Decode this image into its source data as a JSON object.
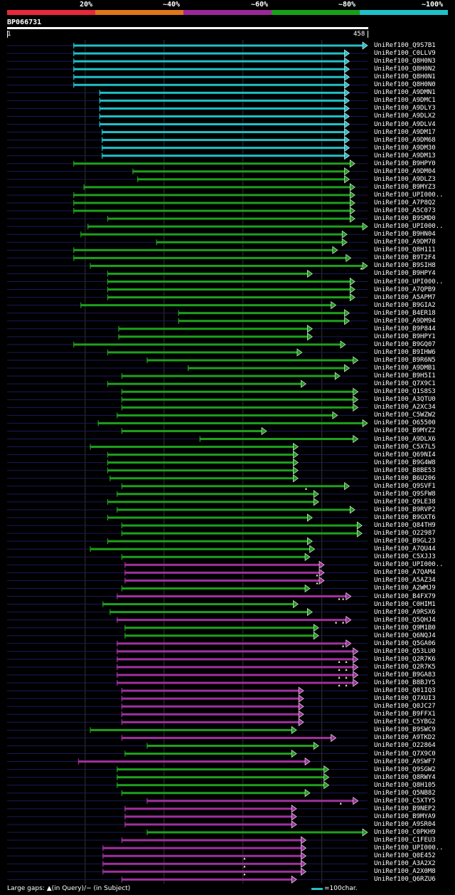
{
  "legend": {
    "labels": [
      "20%",
      "~40%",
      "~60%",
      "~80%",
      "~100%"
    ],
    "colors": [
      "#e8283c",
      "#e07818",
      "#9a2898",
      "#18a018",
      "#20c0c8"
    ]
  },
  "query": {
    "id": "BP066731",
    "start": "1",
    "end": "458",
    "length": 458
  },
  "colors": {
    "cyan": "#20c0c8",
    "green": "#1ea01e",
    "magenta": "#a030a0",
    "track": "#1a1a5a",
    "grid": "#333333"
  },
  "footer": {
    "gaps_text": "Large gaps: ▲(in Query)/− (in Subject)",
    "scale_text": "=100char."
  },
  "hits": [
    {
      "name": "UniRef100_Q9S7B1",
      "s": 85,
      "e": 458,
      "c": "cyan",
      "m": []
    },
    {
      "name": "UniRef100_C0LLV9",
      "s": 85,
      "e": 435,
      "c": "cyan",
      "m": []
    },
    {
      "name": "UniRef100_Q8H0N3",
      "s": 85,
      "e": 435,
      "c": "cyan",
      "m": []
    },
    {
      "name": "UniRef100_Q8H0N2",
      "s": 85,
      "e": 435,
      "c": "cyan",
      "m": []
    },
    {
      "name": "UniRef100_Q8H0N1",
      "s": 85,
      "e": 435,
      "c": "cyan",
      "m": []
    },
    {
      "name": "UniRef100_Q8H0N0",
      "s": 85,
      "e": 435,
      "c": "cyan",
      "m": []
    },
    {
      "name": "UniRef100_A9DMN1",
      "s": 118,
      "e": 435,
      "c": "cyan",
      "m": []
    },
    {
      "name": "UniRef100_A9DMC1",
      "s": 118,
      "e": 435,
      "c": "cyan",
      "m": []
    },
    {
      "name": "UniRef100_A9DLY3",
      "s": 118,
      "e": 435,
      "c": "cyan",
      "m": []
    },
    {
      "name": "UniRef100_A9DLX2",
      "s": 118,
      "e": 435,
      "c": "cyan",
      "m": []
    },
    {
      "name": "UniRef100_A9DLV4",
      "s": 118,
      "e": 435,
      "c": "cyan",
      "m": []
    },
    {
      "name": "UniRef100_A9DM17",
      "s": 121,
      "e": 435,
      "c": "cyan",
      "m": []
    },
    {
      "name": "UniRef100_A9DM68",
      "s": 121,
      "e": 435,
      "c": "cyan",
      "m": []
    },
    {
      "name": "UniRef100_A9DM30",
      "s": 121,
      "e": 435,
      "c": "cyan",
      "m": []
    },
    {
      "name": "UniRef100_A9DM13",
      "s": 121,
      "e": 435,
      "c": "cyan",
      "m": []
    },
    {
      "name": "UniRef100_B9HPY0",
      "s": 85,
      "e": 442,
      "c": "green",
      "m": []
    },
    {
      "name": "UniRef100_A9DM04",
      "s": 160,
      "e": 435,
      "c": "green",
      "m": []
    },
    {
      "name": "UniRef100_A9DLZ3",
      "s": 166,
      "e": 435,
      "c": "green",
      "m": []
    },
    {
      "name": "UniRef100_B9MYZ3",
      "s": 98,
      "e": 442,
      "c": "green",
      "m": []
    },
    {
      "name": "UniRef100_UPI000..",
      "s": 85,
      "e": 442,
      "c": "green",
      "m": []
    },
    {
      "name": "UniRef100_A7P8Q2",
      "s": 85,
      "e": 442,
      "c": "green",
      "m": []
    },
    {
      "name": "UniRef100_A5C073",
      "s": 85,
      "e": 442,
      "c": "green",
      "m": []
    },
    {
      "name": "UniRef100_B9SMD0",
      "s": 128,
      "e": 442,
      "c": "green",
      "m": []
    },
    {
      "name": "UniRef100_UPI000..",
      "s": 103,
      "e": 458,
      "c": "green",
      "m": []
    },
    {
      "name": "UniRef100_B9HN04",
      "s": 94,
      "e": 432,
      "c": "green",
      "m": []
    },
    {
      "name": "UniRef100_A9DM78",
      "s": 190,
      "e": 432,
      "c": "green",
      "m": []
    },
    {
      "name": "UniRef100_Q8H111",
      "s": 85,
      "e": 420,
      "c": "green",
      "m": []
    },
    {
      "name": "UniRef100_B9T2F4",
      "s": 85,
      "e": 437,
      "c": "green",
      "m": []
    },
    {
      "name": "UniRef100_B9SIH8",
      "s": 106,
      "e": 458,
      "c": "green",
      "m": [
        450
      ]
    },
    {
      "name": "UniRef100_B9HPY4",
      "s": 128,
      "e": 388,
      "c": "green",
      "m": []
    },
    {
      "name": "UniRef100_UPI000..",
      "s": 128,
      "e": 442,
      "c": "green",
      "m": []
    },
    {
      "name": "UniRef100_A7QPB9",
      "s": 128,
      "e": 442,
      "c": "green",
      "m": []
    },
    {
      "name": "UniRef100_A5APM7",
      "s": 128,
      "e": 442,
      "c": "green",
      "m": []
    },
    {
      "name": "UniRef100_B9GIA2",
      "s": 94,
      "e": 418,
      "c": "green",
      "m": []
    },
    {
      "name": "UniRef100_B4ER18",
      "s": 218,
      "e": 435,
      "c": "green",
      "m": []
    },
    {
      "name": "UniRef100_A9DM94",
      "s": 218,
      "e": 435,
      "c": "green",
      "m": []
    },
    {
      "name": "UniRef100_B9P844",
      "s": 142,
      "e": 388,
      "c": "green",
      "m": []
    },
    {
      "name": "UniRef100_B9HPY1",
      "s": 142,
      "e": 388,
      "c": "green",
      "m": []
    },
    {
      "name": "UniRef100_B9GQ07",
      "s": 85,
      "e": 430,
      "c": "green",
      "m": []
    },
    {
      "name": "UniRef100_B9IHW6",
      "s": 128,
      "e": 375,
      "c": "green",
      "m": []
    },
    {
      "name": "UniRef100_B9R6N5",
      "s": 178,
      "e": 446,
      "c": "green",
      "m": []
    },
    {
      "name": "UniRef100_A9DMB1",
      "s": 230,
      "e": 435,
      "c": "green",
      "m": []
    },
    {
      "name": "UniRef100_B9H5I1",
      "s": 146,
      "e": 423,
      "c": "green",
      "m": []
    },
    {
      "name": "UniRef100_Q7X9C1",
      "s": 128,
      "e": 380,
      "c": "green",
      "m": []
    },
    {
      "name": "UniRef100_Q1S8S3",
      "s": 146,
      "e": 446,
      "c": "green",
      "m": []
    },
    {
      "name": "UniRef100_A3QTU0",
      "s": 146,
      "e": 446,
      "c": "green",
      "m": []
    },
    {
      "name": "UniRef100_A2XC34",
      "s": 146,
      "e": 446,
      "c": "green",
      "m": []
    },
    {
      "name": "UniRef100_C5WZW2",
      "s": 140,
      "e": 420,
      "c": "green",
      "m": []
    },
    {
      "name": "UniRef100_O65500",
      "s": 116,
      "e": 458,
      "c": "green",
      "m": []
    },
    {
      "name": "UniRef100_B9MYZ2",
      "s": 146,
      "e": 330,
      "c": "green",
      "m": []
    },
    {
      "name": "UniRef100_A9DLX6",
      "s": 245,
      "e": 446,
      "c": "green",
      "m": []
    },
    {
      "name": "UniRef100_C5X7L5",
      "s": 106,
      "e": 370,
      "c": "green",
      "m": []
    },
    {
      "name": "UniRef100_Q69NI4",
      "s": 128,
      "e": 370,
      "c": "green",
      "m": []
    },
    {
      "name": "UniRef100_B9G4W8",
      "s": 128,
      "e": 370,
      "c": "green",
      "m": []
    },
    {
      "name": "UniRef100_B8BE53",
      "s": 128,
      "e": 370,
      "c": "green",
      "m": []
    },
    {
      "name": "UniRef100_B6U206",
      "s": 131,
      "e": 370,
      "c": "green",
      "m": []
    },
    {
      "name": "UniRef100_Q9SVF1",
      "s": 146,
      "e": 435,
      "c": "green",
      "m": [
        380
      ]
    },
    {
      "name": "UniRef100_Q9SFW8",
      "s": 140,
      "e": 396,
      "c": "green",
      "m": []
    },
    {
      "name": "UniRef100_Q9LE38",
      "s": 128,
      "e": 396,
      "c": "green",
      "m": []
    },
    {
      "name": "UniRef100_B9RVP2",
      "s": 140,
      "e": 442,
      "c": "green",
      "m": []
    },
    {
      "name": "UniRef100_B9GXT6",
      "s": 128,
      "e": 388,
      "c": "green",
      "m": []
    },
    {
      "name": "UniRef100_Q84TH9",
      "s": 146,
      "e": 451,
      "c": "green",
      "m": []
    },
    {
      "name": "UniRef100_O22987",
      "s": 146,
      "e": 451,
      "c": "green",
      "m": []
    },
    {
      "name": "UniRef100_B9GL23",
      "s": 128,
      "e": 388,
      "c": "green",
      "m": []
    },
    {
      "name": "UniRef100_A7QU44",
      "s": 106,
      "e": 391,
      "c": "green",
      "m": []
    },
    {
      "name": "UniRef100_C5XJJ3",
      "s": 146,
      "e": 385,
      "c": "green",
      "m": []
    },
    {
      "name": "UniRef100_UPI000..",
      "s": 150,
      "e": 403,
      "c": "magenta",
      "m": []
    },
    {
      "name": "UniRef100_A7QAM4",
      "s": 150,
      "e": 403,
      "c": "magenta",
      "m": [
        394
      ]
    },
    {
      "name": "UniRef100_A5AZ34",
      "s": 150,
      "e": 403,
      "c": "magenta",
      "m": [
        394
      ]
    },
    {
      "name": "UniRef100_A2WMJ9",
      "s": 146,
      "e": 385,
      "c": "green",
      "m": []
    },
    {
      "name": "UniRef100_B4FX79",
      "s": 140,
      "e": 437,
      "c": "magenta",
      "m": [
        422,
        427
      ]
    },
    {
      "name": "UniRef100_C0HIM1",
      "s": 122,
      "e": 370,
      "c": "green",
      "m": []
    },
    {
      "name": "UniRef100_A9RSX6",
      "s": 131,
      "e": 388,
      "c": "green",
      "m": []
    },
    {
      "name": "UniRef100_Q5QHJ4",
      "s": 140,
      "e": 437,
      "c": "magenta",
      "m": [
        418,
        427
      ]
    },
    {
      "name": "UniRef100_Q9M1B0",
      "s": 150,
      "e": 396,
      "c": "green",
      "m": []
    },
    {
      "name": "UniRef100_Q6NQJ4",
      "s": 150,
      "e": 396,
      "c": "green",
      "m": []
    },
    {
      "name": "UniRef100_Q5GA06",
      "s": 140,
      "e": 437,
      "c": "magenta",
      "m": [
        427
      ]
    },
    {
      "name": "UniRef100_Q53LU0",
      "s": 140,
      "e": 446,
      "c": "magenta",
      "m": []
    },
    {
      "name": "UniRef100_Q2R7K6",
      "s": 140,
      "e": 446,
      "c": "magenta",
      "m": [
        422,
        431
      ]
    },
    {
      "name": "UniRef100_Q2R7K5",
      "s": 140,
      "e": 446,
      "c": "magenta",
      "m": [
        422,
        431
      ]
    },
    {
      "name": "UniRef100_B9GA83",
      "s": 140,
      "e": 446,
      "c": "magenta",
      "m": [
        422,
        431
      ]
    },
    {
      "name": "UniRef100_B8BJY5",
      "s": 140,
      "e": 446,
      "c": "magenta",
      "m": [
        422,
        431
      ]
    },
    {
      "name": "UniRef100_Q01IQ3",
      "s": 146,
      "e": 377,
      "c": "magenta",
      "m": []
    },
    {
      "name": "UniRef100_Q7XUI3",
      "s": 146,
      "e": 377,
      "c": "magenta",
      "m": []
    },
    {
      "name": "UniRef100_Q0JC27",
      "s": 146,
      "e": 377,
      "c": "magenta",
      "m": []
    },
    {
      "name": "UniRef100_B9FFX1",
      "s": 146,
      "e": 377,
      "c": "magenta",
      "m": []
    },
    {
      "name": "UniRef100_C5YBG2",
      "s": 146,
      "e": 377,
      "c": "magenta",
      "m": []
    },
    {
      "name": "UniRef100_B9SWC9",
      "s": 106,
      "e": 368,
      "c": "green",
      "m": []
    },
    {
      "name": "UniRef100_A9TKD2",
      "s": 146,
      "e": 418,
      "c": "magenta",
      "m": []
    },
    {
      "name": "UniRef100_O22864",
      "s": 178,
      "e": 396,
      "c": "green",
      "m": []
    },
    {
      "name": "UniRef100_Q7X9C0",
      "s": 150,
      "e": 368,
      "c": "green",
      "m": []
    },
    {
      "name": "UniRef100_A9SWF7",
      "s": 91,
      "e": 385,
      "c": "magenta",
      "m": []
    },
    {
      "name": "UniRef100_Q9SGW2",
      "s": 140,
      "e": 409,
      "c": "green",
      "m": []
    },
    {
      "name": "UniRef100_Q8RWY4",
      "s": 140,
      "e": 409,
      "c": "green",
      "m": []
    },
    {
      "name": "UniRef100_Q8H105",
      "s": 140,
      "e": 409,
      "c": "green",
      "m": []
    },
    {
      "name": "UniRef100_Q5NB82",
      "s": 146,
      "e": 385,
      "c": "green",
      "m": []
    },
    {
      "name": "UniRef100_C5XTY5",
      "s": 178,
      "e": 446,
      "c": "magenta",
      "m": [
        424
      ]
    },
    {
      "name": "UniRef100_B9NEP2",
      "s": 150,
      "e": 368,
      "c": "magenta",
      "m": []
    },
    {
      "name": "UniRef100_B9MYA9",
      "s": 150,
      "e": 368,
      "c": "magenta",
      "m": []
    },
    {
      "name": "UniRef100_A9SR04",
      "s": 150,
      "e": 368,
      "c": "magenta",
      "m": []
    },
    {
      "name": "UniRef100_C0PKH9",
      "s": 178,
      "e": 458,
      "c": "green",
      "m": []
    },
    {
      "name": "UniRef100_C1FEU3",
      "s": 146,
      "e": 380,
      "c": "magenta",
      "m": []
    },
    {
      "name": "UniRef100_UPI000..",
      "s": 122,
      "e": 380,
      "c": "magenta",
      "m": []
    },
    {
      "name": "UniRef100_Q0E452",
      "s": 122,
      "e": 380,
      "c": "magenta",
      "m": [
        302
      ]
    },
    {
      "name": "UniRef100_A3A2X2",
      "s": 122,
      "e": 380,
      "c": "magenta",
      "m": [
        302
      ]
    },
    {
      "name": "UniRef100_A2X0M8",
      "s": 122,
      "e": 380,
      "c": "magenta",
      "m": [
        302
      ]
    },
    {
      "name": "UniRef100_Q6RZU6",
      "s": 146,
      "e": 368,
      "c": "magenta",
      "m": []
    }
  ]
}
